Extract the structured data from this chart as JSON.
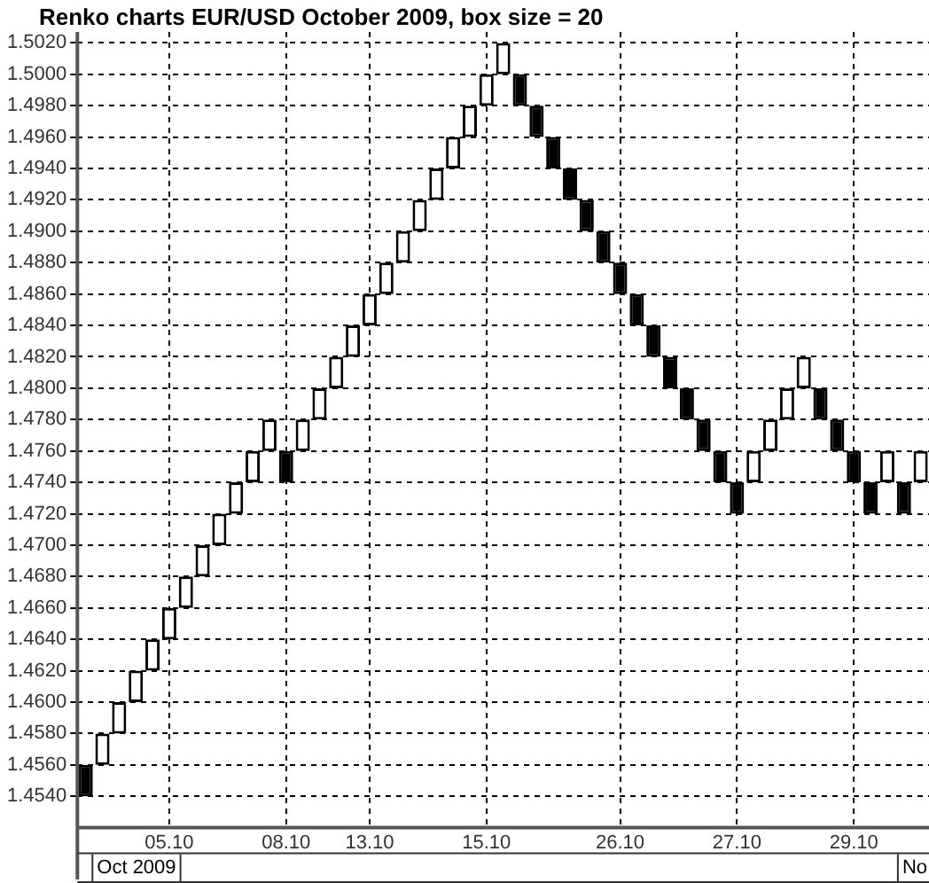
{
  "chart_data": {
    "type": "bar",
    "title": "Renko charts EUR/USD October 2009, box size = 20",
    "categories": [
      null,
      null,
      null,
      null,
      null,
      "05.10",
      null,
      null,
      null,
      null,
      null,
      null,
      "08.10",
      null,
      null,
      null,
      null,
      "13.10",
      null,
      null,
      null,
      null,
      null,
      null,
      "15.10",
      null,
      null,
      null,
      null,
      null,
      null,
      null,
      "26.10",
      null,
      null,
      null,
      null,
      null,
      null,
      "27.10",
      null,
      null,
      null,
      null,
      null,
      null,
      "29.10",
      null,
      null,
      null,
      null
    ],
    "base": [
      1.454,
      1.456,
      1.458,
      1.46,
      1.462,
      1.464,
      1.466,
      1.468,
      1.47,
      1.472,
      1.474,
      1.476,
      1.474,
      1.476,
      1.478,
      1.48,
      1.482,
      1.484,
      1.486,
      1.488,
      1.49,
      1.492,
      1.494,
      1.496,
      1.498,
      1.5,
      1.498,
      1.496,
      1.494,
      1.492,
      1.49,
      1.488,
      1.486,
      1.484,
      1.482,
      1.48,
      1.478,
      1.476,
      1.474,
      1.472,
      1.474,
      1.476,
      1.478,
      1.48,
      1.478,
      1.476,
      1.474,
      1.472,
      1.474,
      1.472,
      1.474
    ],
    "values": [
      0.002,
      0.002,
      0.002,
      0.002,
      0.002,
      0.002,
      0.002,
      0.002,
      0.002,
      0.002,
      0.002,
      0.002,
      0.002,
      0.002,
      0.002,
      0.002,
      0.002,
      0.002,
      0.002,
      0.002,
      0.002,
      0.002,
      0.002,
      0.002,
      0.002,
      0.002,
      0.002,
      0.002,
      0.002,
      0.002,
      0.002,
      0.002,
      0.002,
      0.002,
      0.002,
      0.002,
      0.002,
      0.002,
      0.002,
      0.002,
      0.002,
      0.002,
      0.002,
      0.002,
      0.002,
      0.002,
      0.002,
      0.002,
      0.002,
      0.002,
      0.002
    ],
    "colors": [
      "#000000",
      "#ffffff",
      "#ffffff",
      "#ffffff",
      "#ffffff",
      "#ffffff",
      "#ffffff",
      "#ffffff",
      "#ffffff",
      "#ffffff",
      "#ffffff",
      "#ffffff",
      "#000000",
      "#ffffff",
      "#ffffff",
      "#ffffff",
      "#ffffff",
      "#ffffff",
      "#ffffff",
      "#ffffff",
      "#ffffff",
      "#ffffff",
      "#ffffff",
      "#ffffff",
      "#ffffff",
      "#ffffff",
      "#000000",
      "#000000",
      "#000000",
      "#000000",
      "#000000",
      "#000000",
      "#000000",
      "#000000",
      "#000000",
      "#000000",
      "#000000",
      "#000000",
      "#000000",
      "#000000",
      "#ffffff",
      "#ffffff",
      "#ffffff",
      "#ffffff",
      "#000000",
      "#000000",
      "#000000",
      "#000000",
      "#ffffff",
      "#000000",
      "#ffffff"
    ],
    "ylim": [
      1.452,
      1.5027
    ],
    "yticks": [
      {
        "value": 1.454,
        "label": "1.4540"
      },
      {
        "value": 1.456,
        "label": "1.4560"
      },
      {
        "value": 1.458,
        "label": "1.4580"
      },
      {
        "value": 1.46,
        "label": "1.4600"
      },
      {
        "value": 1.462,
        "label": "1.4620"
      },
      {
        "value": 1.464,
        "label": "1.4640"
      },
      {
        "value": 1.466,
        "label": "1.4660"
      },
      {
        "value": 1.468,
        "label": "1.4680"
      },
      {
        "value": 1.47,
        "label": "1.4700"
      },
      {
        "value": 1.472,
        "label": "1.4720"
      },
      {
        "value": 1.474,
        "label": "1.4740"
      },
      {
        "value": 1.476,
        "label": "1.4760"
      },
      {
        "value": 1.478,
        "label": "1.4780"
      },
      {
        "value": 1.48,
        "label": "1.4800"
      },
      {
        "value": 1.482,
        "label": "1.4820"
      },
      {
        "value": 1.484,
        "label": "1.4840"
      },
      {
        "value": 1.486,
        "label": "1.4860"
      },
      {
        "value": 1.488,
        "label": "1.4880"
      },
      {
        "value": 1.49,
        "label": "1.4900"
      },
      {
        "value": 1.492,
        "label": "1.4920"
      },
      {
        "value": 1.494,
        "label": "1.4940"
      },
      {
        "value": 1.496,
        "label": "1.4960"
      },
      {
        "value": 1.498,
        "label": "1.4980"
      },
      {
        "value": 1.5,
        "label": "1.5000"
      },
      {
        "value": 1.502,
        "label": "1.5020"
      }
    ],
    "grid": true,
    "annotations": [
      "Oct 2009",
      "No"
    ]
  }
}
